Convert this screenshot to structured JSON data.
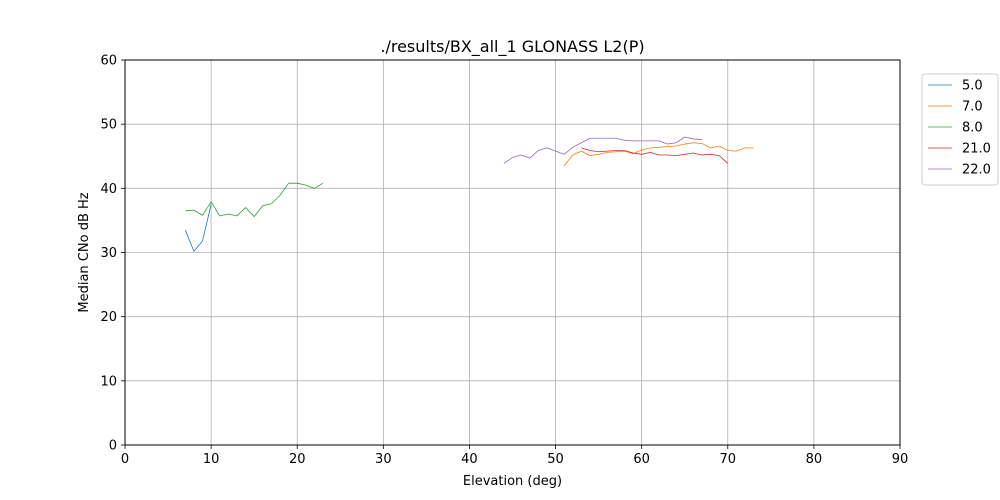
{
  "chart_data": {
    "type": "line",
    "title": "./results/BX_all_1 GLONASS L2(P)",
    "xlabel": "Elevation (deg)",
    "ylabel": "Median CNo dB Hz",
    "xlim": [
      0,
      90
    ],
    "ylim": [
      0,
      60
    ],
    "xticks": [
      0,
      10,
      20,
      30,
      40,
      50,
      60,
      70,
      80,
      90
    ],
    "yticks": [
      0,
      10,
      20,
      30,
      40,
      50,
      60
    ],
    "grid": true,
    "legend_position": "outside-top-right",
    "series": [
      {
        "name": "5.0",
        "color": "#1f77b4",
        "points": [
          [
            7,
            33.5
          ],
          [
            8,
            30.2
          ],
          [
            9,
            31.8
          ],
          [
            10,
            37.5
          ]
        ]
      },
      {
        "name": "7.0",
        "color": "#ff7f0e",
        "points": [
          [
            51,
            43.5
          ],
          [
            52,
            45.2
          ],
          [
            53,
            45.8
          ],
          [
            54,
            45.1
          ],
          [
            55,
            45.3
          ],
          [
            56,
            45.6
          ],
          [
            57,
            45.7
          ],
          [
            58,
            45.8
          ],
          [
            59,
            45.4
          ],
          [
            60,
            46.0
          ],
          [
            61,
            46.3
          ],
          [
            62,
            46.4
          ],
          [
            63,
            46.5
          ],
          [
            64,
            46.6
          ],
          [
            65,
            46.9
          ],
          [
            66,
            47.1
          ],
          [
            67,
            47.0
          ],
          [
            68,
            46.3
          ],
          [
            69,
            46.6
          ],
          [
            70,
            45.9
          ],
          [
            71,
            45.8
          ],
          [
            72,
            46.3
          ],
          [
            73,
            46.3
          ]
        ]
      },
      {
        "name": "8.0",
        "color": "#2ca02c",
        "points": [
          [
            7,
            36.5
          ],
          [
            8,
            36.6
          ],
          [
            9,
            35.8
          ],
          [
            10,
            37.9
          ],
          [
            11,
            35.7
          ],
          [
            12,
            36.0
          ],
          [
            13,
            35.7
          ],
          [
            14,
            37.0
          ],
          [
            15,
            35.6
          ],
          [
            16,
            37.3
          ],
          [
            17,
            37.6
          ],
          [
            18,
            38.9
          ],
          [
            19,
            40.8
          ],
          [
            20,
            40.8
          ],
          [
            21,
            40.5
          ],
          [
            22,
            40.0
          ],
          [
            23,
            40.8
          ]
        ]
      },
      {
        "name": "21.0",
        "color": "#d62728",
        "points": [
          [
            53,
            46.3
          ],
          [
            54,
            45.9
          ],
          [
            55,
            45.7
          ],
          [
            56,
            45.8
          ],
          [
            57,
            45.9
          ],
          [
            58,
            45.9
          ],
          [
            59,
            45.5
          ],
          [
            60,
            45.3
          ],
          [
            61,
            45.6
          ],
          [
            62,
            45.2
          ],
          [
            63,
            45.2
          ],
          [
            64,
            45.1
          ],
          [
            65,
            45.3
          ],
          [
            66,
            45.5
          ],
          [
            67,
            45.2
          ],
          [
            68,
            45.3
          ],
          [
            69,
            45.1
          ],
          [
            70,
            43.9
          ]
        ]
      },
      {
        "name": "22.0",
        "color": "#9467bd",
        "points": [
          [
            44,
            43.9
          ],
          [
            45,
            44.8
          ],
          [
            46,
            45.2
          ],
          [
            47,
            44.7
          ],
          [
            48,
            45.9
          ],
          [
            49,
            46.3
          ],
          [
            50,
            45.8
          ],
          [
            51,
            45.3
          ],
          [
            52,
            46.4
          ],
          [
            53,
            47.1
          ],
          [
            54,
            47.8
          ],
          [
            55,
            47.8
          ],
          [
            56,
            47.8
          ],
          [
            57,
            47.8
          ],
          [
            58,
            47.5
          ],
          [
            59,
            47.4
          ],
          [
            60,
            47.4
          ],
          [
            61,
            47.4
          ],
          [
            62,
            47.4
          ],
          [
            63,
            46.9
          ],
          [
            64,
            47.1
          ],
          [
            65,
            48.0
          ],
          [
            66,
            47.7
          ],
          [
            67,
            47.6
          ]
        ]
      }
    ]
  }
}
